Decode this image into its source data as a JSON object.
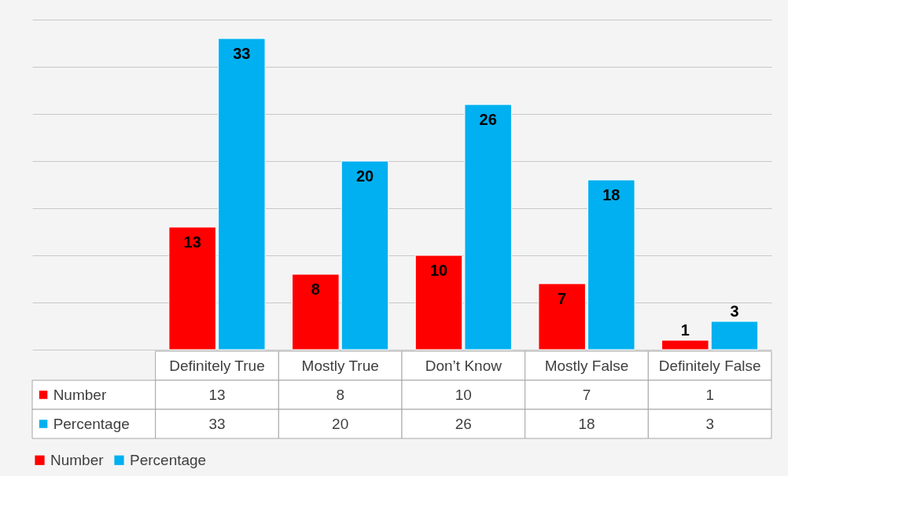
{
  "chart_data": {
    "type": "bar",
    "categories": [
      "Definitely True",
      "Mostly True",
      "Don’t Know",
      "Mostly False",
      "Definitely False"
    ],
    "series": [
      {
        "name": "Number",
        "color": "#ff0000",
        "values": [
          13,
          8,
          10,
          7,
          1
        ],
        "value_labels": [
          "13",
          "8",
          "10",
          "7",
          "1"
        ]
      },
      {
        "name": "Percentage",
        "color": "#00b0f0",
        "values": [
          33,
          20,
          26,
          18,
          3
        ],
        "value_labels": [
          "33",
          "20",
          "26",
          "18",
          "3"
        ]
      }
    ],
    "ylim": [
      0,
      35
    ],
    "yticks": [
      {
        "value": 0,
        "label": null
      },
      {
        "value": 5,
        "label": null
      },
      {
        "value": 10,
        "label": null
      },
      {
        "value": 15,
        "label": null
      },
      {
        "value": 20,
        "label": null
      },
      {
        "value": 25,
        "label": null
      },
      {
        "value": 30,
        "label": null
      },
      {
        "value": 35,
        "label": null
      }
    ],
    "annotations": [
      "13",
      "8",
      "10",
      "7",
      "1",
      "33",
      "20",
      "26",
      "18",
      "3"
    ],
    "grid": "y",
    "tick_labels": "x",
    "legend": "bottom"
  }
}
